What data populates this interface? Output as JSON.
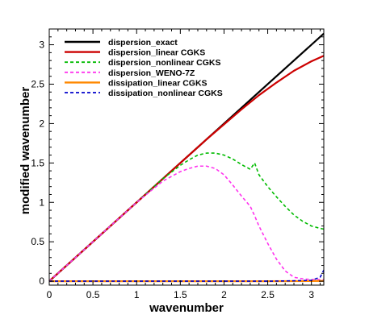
{
  "chart_data": {
    "type": "line",
    "xlabel": "wavenumber",
    "ylabel": "modified wavenumber",
    "xlim": [
      0,
      3.14159
    ],
    "ylim": [
      -0.05,
      3.2
    ],
    "xticks": [
      "0",
      "0.5",
      "1",
      "1.5",
      "2",
      "2.5",
      "3"
    ],
    "yticks": [
      "0",
      "0.5",
      "1",
      "1.5",
      "2",
      "2.5",
      "3"
    ],
    "legend_position": "top-left",
    "grid": false,
    "series": [
      {
        "name": "dispersion_exact",
        "color": "#000000",
        "style": "solid",
        "x": [
          0,
          0.5,
          1.0,
          1.5,
          2.0,
          2.5,
          3.14159
        ],
        "y": [
          0,
          0.5,
          1.0,
          1.5,
          2.0,
          2.5,
          3.14159
        ]
      },
      {
        "name": "dispersion_linear CGKS",
        "color": "#cc0000",
        "style": "solid",
        "x": [
          0,
          0.5,
          1.0,
          1.5,
          1.8,
          2.0,
          2.2,
          2.4,
          2.6,
          2.8,
          3.0,
          3.14159
        ],
        "y": [
          0,
          0.5,
          1.0,
          1.5,
          1.8,
          1.99,
          2.18,
          2.36,
          2.52,
          2.67,
          2.79,
          2.86
        ]
      },
      {
        "name": "dispersion_nonlinear CGKS",
        "color": "#00bb00",
        "style": "dashed",
        "x": [
          0,
          0.5,
          1.0,
          1.3,
          1.5,
          1.6,
          1.7,
          1.8,
          1.9,
          2.0,
          2.1,
          2.2,
          2.3,
          2.35,
          2.4,
          2.5,
          2.6,
          2.7,
          2.8,
          2.9,
          3.0,
          3.1,
          3.14159
        ],
        "y": [
          0,
          0.5,
          1.0,
          1.3,
          1.47,
          1.54,
          1.6,
          1.625,
          1.625,
          1.6,
          1.55,
          1.48,
          1.42,
          1.5,
          1.35,
          1.2,
          1.07,
          0.95,
          0.84,
          0.76,
          0.7,
          0.67,
          0.66
        ]
      },
      {
        "name": "dispersion_WENO-7Z",
        "color": "#ff33ee",
        "style": "dashed",
        "x": [
          0,
          0.5,
          1.0,
          1.3,
          1.5,
          1.6,
          1.7,
          1.8,
          1.9,
          2.0,
          2.1,
          2.2,
          2.3,
          2.35,
          2.4,
          2.5,
          2.6,
          2.7,
          2.8,
          2.9,
          3.0,
          3.1,
          3.14159
        ],
        "y": [
          0,
          0.5,
          1.0,
          1.27,
          1.39,
          1.43,
          1.46,
          1.46,
          1.43,
          1.35,
          1.22,
          1.08,
          0.95,
          0.83,
          0.7,
          0.48,
          0.28,
          0.13,
          0.05,
          0.03,
          0.02,
          0.02,
          0.02
        ]
      },
      {
        "name": "dissipation_linear CGKS",
        "color": "#ff8800",
        "style": "solid",
        "x": [
          0,
          1.0,
          2.0,
          2.5,
          3.0,
          3.14159
        ],
        "y": [
          0,
          0,
          0,
          0,
          0.002,
          0.004
        ]
      },
      {
        "name": "dissipation_nonlinear CGKS",
        "color": "#0000cc",
        "style": "dashed",
        "x": [
          0,
          1.0,
          2.0,
          2.5,
          2.8,
          3.0,
          3.1,
          3.14159
        ],
        "y": [
          0,
          0,
          0,
          0,
          0.005,
          0.01,
          0.05,
          0.14
        ]
      }
    ]
  }
}
